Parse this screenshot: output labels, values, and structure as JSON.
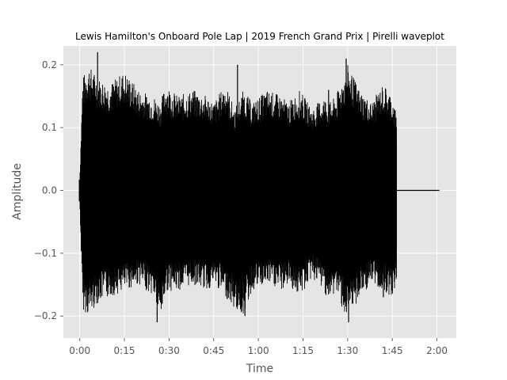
{
  "chart_data": {
    "type": "line",
    "title": "Lewis Hamilton's Onboard Pole Lap | 2019 French Grand Prix | Pirelli waveplot",
    "xlabel": "Time",
    "ylabel": "Amplitude",
    "x_unit": "seconds",
    "xlim": [
      -5.5,
      126.5
    ],
    "ylim": [
      -0.235,
      0.23
    ],
    "x_ticks": [
      {
        "value": 0,
        "label": "0:00"
      },
      {
        "value": 15,
        "label": "0:15"
      },
      {
        "value": 30,
        "label": "0:30"
      },
      {
        "value": 45,
        "label": "0:45"
      },
      {
        "value": 60,
        "label": "1:00"
      },
      {
        "value": 75,
        "label": "1:15"
      },
      {
        "value": 90,
        "label": "1:30"
      },
      {
        "value": 105,
        "label": "1:45"
      },
      {
        "value": 120,
        "label": "2:00"
      }
    ],
    "y_ticks": [
      {
        "value": 0.2,
        "label": "0.2"
      },
      {
        "value": 0.1,
        "label": "0.1"
      },
      {
        "value": 0.0,
        "label": "0.0"
      },
      {
        "value": -0.1,
        "label": "−0.1"
      },
      {
        "value": -0.2,
        "label": "−0.2"
      }
    ],
    "grid": true,
    "background": "#e5e5e5",
    "grid_color": "#ffffff",
    "line_color": "#000000",
    "envelope": {
      "x": [
        0,
        1,
        3,
        6,
        10,
        15,
        20,
        25,
        27,
        29,
        33,
        38,
        43,
        45,
        49,
        52,
        55,
        58,
        63,
        68,
        70,
        74,
        78,
        82,
        84,
        86,
        90,
        94,
        98,
        102,
        105,
        106.5,
        107,
        109,
        112,
        120.8
      ],
      "max": [
        0.02,
        0.18,
        0.2,
        0.18,
        0.17,
        0.19,
        0.16,
        0.15,
        0.14,
        0.17,
        0.15,
        0.16,
        0.15,
        0.14,
        0.17,
        0.13,
        0.16,
        0.14,
        0.16,
        0.15,
        0.14,
        0.16,
        0.13,
        0.15,
        0.14,
        0.15,
        0.2,
        0.16,
        0.14,
        0.17,
        0.15,
        0.12,
        0.0,
        0.0,
        0.0,
        0.0
      ],
      "min": [
        -0.02,
        -0.19,
        -0.2,
        -0.18,
        -0.17,
        -0.16,
        -0.15,
        -0.17,
        -0.21,
        -0.16,
        -0.16,
        -0.15,
        -0.16,
        -0.15,
        -0.17,
        -0.19,
        -0.2,
        -0.16,
        -0.15,
        -0.16,
        -0.15,
        -0.17,
        -0.14,
        -0.16,
        -0.18,
        -0.16,
        -0.21,
        -0.17,
        -0.15,
        -0.16,
        -0.17,
        -0.15,
        0.0,
        0.0,
        0.0,
        0.0
      ]
    },
    "spikes": [
      {
        "x": 6,
        "y": 0.22
      },
      {
        "x": 26,
        "y": -0.21
      },
      {
        "x": 53,
        "y": 0.2
      },
      {
        "x": 55.5,
        "y": -0.2
      },
      {
        "x": 83.6,
        "y": 0.16
      },
      {
        "x": 89.5,
        "y": 0.21
      },
      {
        "x": 90.3,
        "y": -0.21
      },
      {
        "x": 102,
        "y": -0.17
      }
    ]
  }
}
